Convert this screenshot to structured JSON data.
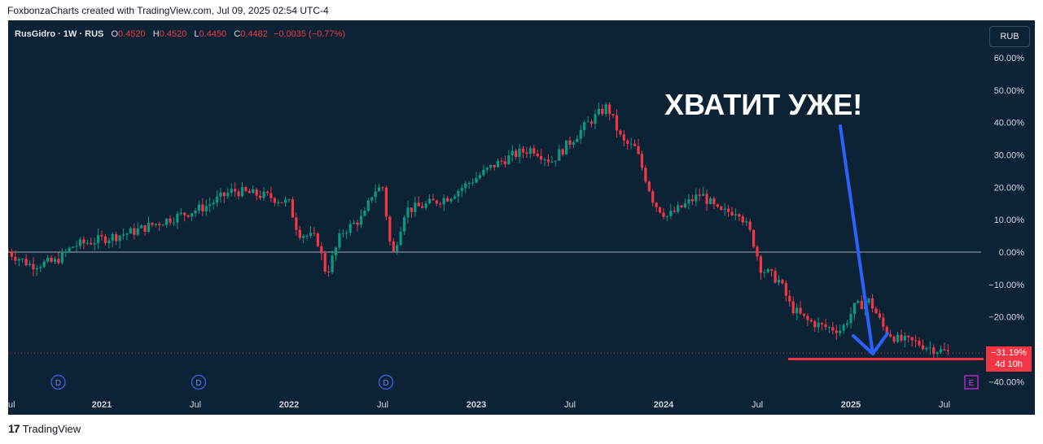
{
  "header": {
    "attribution": "FoxbonzaCharts created with TradingView.com, Jul 09, 2025 02:54 UTC-4"
  },
  "legend": {
    "symbol": "RusGidro · 1W · RUS",
    "open_label": "O",
    "open": "0.4520",
    "high_label": "H",
    "high": "0.4520",
    "low_label": "L",
    "low": "0.4450",
    "close_label": "C",
    "close": "0.4482",
    "change": "−0.0035 (−0.77%)"
  },
  "currency_button": "RUB",
  "annotation_text": "ХВАТИТ УЖЕ!",
  "price_tag": {
    "value": "−31.19%",
    "countdown": "4d 10h"
  },
  "marker_labels": {
    "dividend": "D",
    "earnings": "E"
  },
  "footer": {
    "logo": "17",
    "brand": "TradingView"
  },
  "colors": {
    "background": "#0c2336",
    "up": "#089981",
    "down": "#f23645",
    "arrow": "#2962ff",
    "text": "#d1d4dc"
  },
  "chart_data": {
    "type": "candlestick",
    "interval": "1W",
    "scale": "percent",
    "y_ticks": [
      "60.00%",
      "50.00%",
      "40.00%",
      "30.00%",
      "20.00%",
      "10.00%",
      "0.00%",
      "−10.00%",
      "−20.00%",
      "−30.00%",
      "−40.00%"
    ],
    "x_ticks": [
      {
        "label": "ul",
        "t": 2020.5,
        "year": false
      },
      {
        "label": "2021",
        "t": 2021.0,
        "year": true
      },
      {
        "label": "Jul",
        "t": 2021.5,
        "year": false
      },
      {
        "label": "2022",
        "t": 2022.0,
        "year": true
      },
      {
        "label": "Jul",
        "t": 2022.5,
        "year": false
      },
      {
        "label": "2023",
        "t": 2023.0,
        "year": true
      },
      {
        "label": "Jul",
        "t": 2023.5,
        "year": false
      },
      {
        "label": "2024",
        "t": 2024.0,
        "year": true
      },
      {
        "label": "Jul",
        "t": 2024.5,
        "year": false
      },
      {
        "label": "2025",
        "t": 2025.0,
        "year": true
      },
      {
        "label": "Jul",
        "t": 2025.5,
        "year": false
      }
    ],
    "price_path": [
      [
        2020.5,
        0
      ],
      [
        2020.62,
        -4
      ],
      [
        2020.75,
        -3
      ],
      [
        2020.85,
        2
      ],
      [
        2021.0,
        4
      ],
      [
        2021.15,
        6
      ],
      [
        2021.3,
        9
      ],
      [
        2021.45,
        12
      ],
      [
        2021.55,
        14
      ],
      [
        2021.7,
        19
      ],
      [
        2021.8,
        18
      ],
      [
        2021.9,
        17
      ],
      [
        2022.0,
        15
      ],
      [
        2022.05,
        6
      ],
      [
        2022.15,
        4
      ],
      [
        2022.2,
        -7
      ],
      [
        2022.28,
        6
      ],
      [
        2022.4,
        11
      ],
      [
        2022.45,
        19
      ],
      [
        2022.5,
        20
      ],
      [
        2022.55,
        -2
      ],
      [
        2022.62,
        13
      ],
      [
        2022.7,
        14
      ],
      [
        2022.85,
        17
      ],
      [
        2022.95,
        21
      ],
      [
        2023.1,
        27
      ],
      [
        2023.2,
        30
      ],
      [
        2023.3,
        32
      ],
      [
        2023.4,
        28
      ],
      [
        2023.5,
        34
      ],
      [
        2023.6,
        40
      ],
      [
        2023.7,
        45
      ],
      [
        2023.78,
        34
      ],
      [
        2023.85,
        32
      ],
      [
        2023.95,
        15
      ],
      [
        2024.02,
        11
      ],
      [
        2024.1,
        14
      ],
      [
        2024.2,
        18
      ],
      [
        2024.3,
        12
      ],
      [
        2024.4,
        13
      ],
      [
        2024.47,
        5
      ],
      [
        2024.52,
        -5
      ],
      [
        2024.62,
        -9
      ],
      [
        2024.68,
        -17
      ],
      [
        2024.76,
        -21
      ],
      [
        2024.85,
        -23
      ],
      [
        2024.95,
        -24
      ],
      [
        2025.02,
        -17
      ],
      [
        2025.1,
        -15
      ],
      [
        2025.18,
        -24
      ],
      [
        2025.25,
        -27
      ],
      [
        2025.35,
        -28
      ],
      [
        2025.45,
        -30
      ],
      [
        2025.53,
        -31.19
      ]
    ],
    "dividend_markers": [
      2020.75,
      2021.5,
      2022.5
    ],
    "earnings_marker": 2025.6,
    "support_level": -33
  }
}
